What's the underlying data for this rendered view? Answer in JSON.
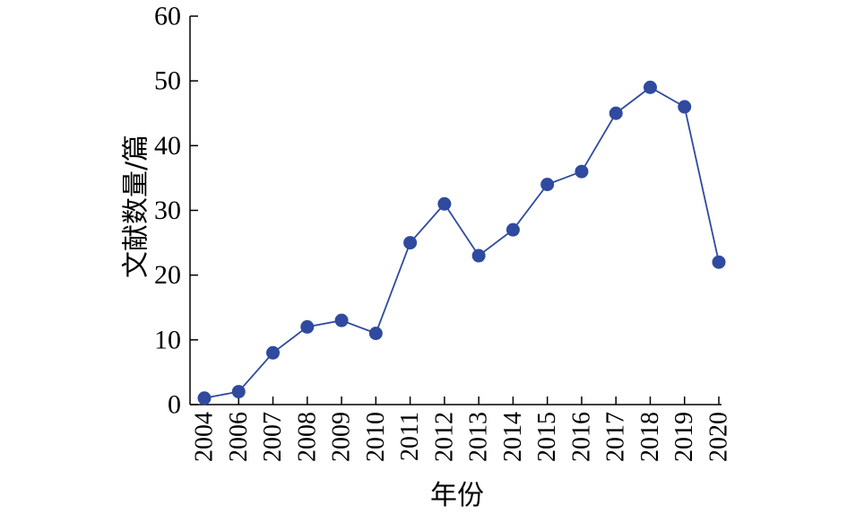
{
  "chart_data": {
    "type": "line",
    "xlabel": "年份",
    "ylabel": "文献数量/篇",
    "ylim": [
      0,
      60
    ],
    "yticks": [
      0,
      10,
      20,
      30,
      40,
      50,
      60
    ],
    "categories": [
      "2004",
      "2006",
      "2007",
      "2008",
      "2009",
      "2010",
      "2011",
      "2012",
      "2013",
      "2014",
      "2015",
      "2016",
      "2017",
      "2018",
      "2019",
      "2020"
    ],
    "series": [
      {
        "values": [
          1,
          2,
          8,
          12,
          13,
          11,
          25,
          31,
          23,
          27,
          34,
          36,
          45,
          49,
          46,
          22
        ],
        "color": "#2f4a9e"
      }
    ],
    "grid": false,
    "legend": "none",
    "markers": "filled-circle"
  }
}
